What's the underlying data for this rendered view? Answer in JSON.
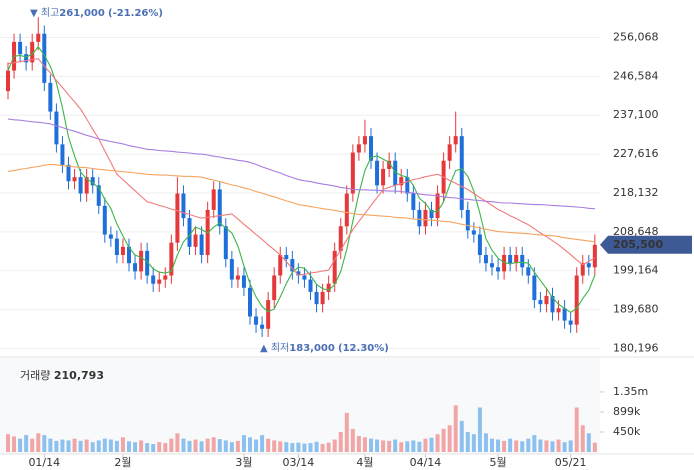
{
  "chart_data": {
    "type": "candlestick",
    "categories": [
      null,
      null,
      null,
      null,
      null,
      null,
      "01/14",
      null,
      null,
      null,
      null,
      null,
      null,
      null,
      null,
      null,
      null,
      null,
      null,
      "2월",
      null,
      null,
      null,
      null,
      null,
      null,
      null,
      null,
      null,
      null,
      null,
      null,
      null,
      null,
      null,
      null,
      null,
      null,
      null,
      "3월",
      null,
      null,
      null,
      null,
      null,
      null,
      null,
      null,
      "03/14",
      null,
      null,
      null,
      null,
      null,
      null,
      null,
      null,
      null,
      null,
      "4월",
      null,
      null,
      null,
      null,
      null,
      null,
      null,
      null,
      null,
      "04/14",
      null,
      null,
      null,
      null,
      null,
      null,
      null,
      null,
      null,
      null,
      null,
      "5월",
      null,
      null,
      null,
      null,
      null,
      null,
      null,
      null,
      null,
      null,
      null,
      "05/21",
      null,
      null,
      null,
      null
    ],
    "open": [
      243000,
      248000,
      255000,
      252000,
      250000,
      255000,
      257000,
      245000,
      238000,
      230000,
      225000,
      221000,
      222000,
      218000,
      222000,
      220000,
      215000,
      208000,
      207000,
      203000,
      205000,
      201000,
      199000,
      204000,
      198000,
      196000,
      197000,
      198000,
      206000,
      218000,
      212000,
      205000,
      208000,
      203000,
      214000,
      219000,
      210000,
      202000,
      197000,
      198000,
      195000,
      188000,
      186000,
      185000,
      192000,
      198000,
      203000,
      202000,
      199000,
      198000,
      197000,
      194000,
      191000,
      194000,
      196000,
      204000,
      210000,
      218000,
      228000,
      230000,
      232000,
      226000,
      220000,
      224000,
      226000,
      220000,
      222000,
      218000,
      214000,
      210000,
      214000,
      212000,
      218000,
      226000,
      230000,
      232000,
      214000,
      209000,
      208000,
      203000,
      201000,
      200000,
      199000,
      203000,
      201000,
      203000,
      200000,
      198000,
      192000,
      191000,
      193000,
      189000,
      190000,
      187000,
      186000,
      198000,
      201000,
      200000
    ],
    "high": [
      250000,
      257000,
      257000,
      254000,
      257000,
      261000,
      259000,
      247000,
      240000,
      232000,
      227000,
      224000,
      224000,
      224000,
      224000,
      222000,
      217000,
      210000,
      209000,
      207000,
      207000,
      203000,
      206000,
      206000,
      200000,
      199000,
      200000,
      208000,
      222000,
      220000,
      214000,
      210000,
      210000,
      216000,
      221000,
      221000,
      212000,
      204000,
      200000,
      200000,
      197000,
      190000,
      188000,
      194000,
      200000,
      205000,
      205000,
      204000,
      201000,
      200000,
      199000,
      196000,
      196000,
      198000,
      206000,
      212000,
      220000,
      230000,
      232000,
      236000,
      234000,
      228000,
      226000,
      228000,
      228000,
      224000,
      224000,
      220000,
      216000,
      216000,
      216000,
      220000,
      228000,
      232000,
      238000,
      234000,
      216000,
      211000,
      210000,
      205000,
      203000,
      202000,
      205000,
      205000,
      205000,
      205000,
      202000,
      200000,
      194000,
      195000,
      195000,
      192000,
      192000,
      189000,
      200000,
      203000,
      203000,
      208000
    ],
    "low": [
      241000,
      246000,
      250000,
      248000,
      248000,
      253000,
      243000,
      236000,
      228000,
      223000,
      219000,
      219000,
      216000,
      216000,
      218000,
      213000,
      206000,
      205000,
      201000,
      201000,
      199000,
      197000,
      197000,
      196000,
      194000,
      194000,
      195000,
      196000,
      204000,
      210000,
      203000,
      203000,
      201000,
      201000,
      212000,
      208000,
      200000,
      195000,
      195000,
      193000,
      186000,
      184000,
      183000,
      183000,
      190000,
      196000,
      200000,
      197000,
      196000,
      195000,
      192000,
      189000,
      189000,
      192000,
      194000,
      202000,
      208000,
      216000,
      226000,
      228000,
      224000,
      218000,
      218000,
      222000,
      218000,
      218000,
      216000,
      212000,
      208000,
      208000,
      210000,
      210000,
      216000,
      224000,
      228000,
      212000,
      207000,
      206000,
      201000,
      199000,
      198000,
      197000,
      197000,
      199000,
      199000,
      198000,
      196000,
      190000,
      189000,
      189000,
      187000,
      187000,
      185000,
      184000,
      184000,
      196000,
      198000,
      198000
    ],
    "close": [
      248000,
      255000,
      252000,
      250000,
      255000,
      257000,
      245000,
      238000,
      230000,
      225000,
      221000,
      222000,
      218000,
      222000,
      220000,
      215000,
      208000,
      207000,
      203000,
      205000,
      201000,
      199000,
      204000,
      198000,
      196000,
      197000,
      198000,
      206000,
      218000,
      212000,
      205000,
      208000,
      203000,
      214000,
      219000,
      210000,
      202000,
      197000,
      198000,
      195000,
      188000,
      186000,
      185000,
      192000,
      198000,
      203000,
      202000,
      199000,
      198000,
      197000,
      194000,
      191000,
      194000,
      196000,
      204000,
      210000,
      218000,
      228000,
      230000,
      232000,
      226000,
      220000,
      224000,
      226000,
      220000,
      222000,
      218000,
      214000,
      210000,
      214000,
      212000,
      218000,
      226000,
      230000,
      232000,
      214000,
      209000,
      208000,
      203000,
      201000,
      200000,
      199000,
      203000,
      201000,
      203000,
      200000,
      198000,
      192000,
      191000,
      193000,
      189000,
      190000,
      187000,
      186000,
      198000,
      201000,
      200000,
      205500
    ],
    "up_color": "#e5383b",
    "down_color": "#1e6fd9",
    "ylim": [
      178600,
      264000
    ],
    "yticks": [
      {
        "value": 256068,
        "label": "256,068"
      },
      {
        "value": 246584,
        "label": "246,584"
      },
      {
        "value": 237100,
        "label": "237,100"
      },
      {
        "value": 227616,
        "label": "227,616"
      },
      {
        "value": 218132,
        "label": "218,132"
      },
      {
        "value": 208648,
        "label": "208,648"
      },
      {
        "value": 199164,
        "label": "199,164"
      },
      {
        "value": 189680,
        "label": "189,680"
      },
      {
        "value": 180196,
        "label": "180,196"
      }
    ],
    "grid": true,
    "moving_averages": [
      {
        "color": "#3cb54a",
        "values": [
          248000,
          251500,
          251700,
          251300,
          252000,
          253800,
          251800,
          249000,
          245000,
          239000,
          231800,
          227200,
          223200,
          221600,
          220600,
          219400,
          216600,
          214400,
          210600,
          207600,
          204800,
          203000,
          202400,
          201400,
          199600,
          198800,
          198600,
          199000,
          203000,
          206200,
          207800,
          209800,
          209200,
          208400,
          209800,
          210800,
          209600,
          208400,
          205200,
          200400,
          196000,
          192800,
          190400,
          189200,
          189800,
          192800,
          196000,
          198800,
          200000,
          199800,
          198000,
          195800,
          194800,
          194400,
          195800,
          199000,
          204400,
          211200,
          218000,
          223600,
          226800,
          227200,
          226400,
          225600,
          223200,
          222400,
          222000,
          220000,
          216800,
          215600,
          213600,
          213600,
          216000,
          220000,
          223600,
          224000,
          222200,
          218600,
          213200,
          207000,
          204200,
          202200,
          201200,
          200800,
          201200,
          201200,
          201000,
          198800,
          196800,
          194800,
          192600,
          191000,
          190000,
          189000,
          190000,
          192400,
          194400,
          198100
        ]
      },
      {
        "color": "#f07b7b",
        "values": [
          249700,
          249900,
          250200,
          250400,
          250700,
          250900,
          249100,
          247400,
          245600,
          243900,
          242100,
          240400,
          238600,
          236200,
          233700,
          231300,
          228400,
          225600,
          222700,
          221400,
          220000,
          218700,
          217300,
          216000,
          215600,
          215100,
          214700,
          214200,
          213800,
          213300,
          212900,
          212400,
          212000,
          212200,
          212400,
          212600,
          212800,
          213000,
          211800,
          210500,
          209300,
          208000,
          206800,
          205500,
          204300,
          203000,
          201400,
          199700,
          198100,
          198300,
          198600,
          198800,
          199100,
          199300,
          201800,
          204300,
          206700,
          209200,
          211200,
          213100,
          215100,
          217000,
          219000,
          219500,
          220000,
          220400,
          220900,
          221400,
          221700,
          222100,
          222400,
          222700,
          222000,
          221200,
          220500,
          219700,
          219000,
          218000,
          217000,
          216100,
          215100,
          214100,
          213400,
          212600,
          211900,
          211100,
          210400,
          209400,
          208400,
          207500,
          206500,
          205500,
          204300,
          203100,
          201800,
          200600,
          201500,
          202300
        ]
      },
      {
        "color": "#f5a45f",
        "values": [
          223400,
          223600,
          223900,
          224100,
          224400,
          224600,
          224900,
          225100,
          225000,
          224800,
          224700,
          224500,
          224400,
          224300,
          224100,
          223900,
          223800,
          223600,
          223500,
          223300,
          223200,
          223000,
          222900,
          222700,
          222600,
          222500,
          222500,
          222400,
          222300,
          222200,
          222200,
          222100,
          222000,
          221600,
          221300,
          220900,
          220500,
          220100,
          219800,
          219400,
          219000,
          218500,
          218100,
          217600,
          217200,
          216700,
          216200,
          215800,
          215300,
          215100,
          214800,
          214600,
          214300,
          214100,
          213900,
          213600,
          213400,
          213100,
          212900,
          212800,
          212700,
          212600,
          212500,
          212400,
          212200,
          212100,
          212000,
          211800,
          211700,
          211600,
          211500,
          211400,
          211200,
          211100,
          210800,
          210500,
          210200,
          209900,
          209600,
          209300,
          209000,
          208700,
          208600,
          208500,
          208400,
          208300,
          208200,
          208000,
          207900,
          207800,
          207700,
          207500,
          207200,
          207000,
          206800,
          206600,
          206400,
          206200
        ]
      },
      {
        "color": "#a97de0",
        "values": [
          236200,
          236000,
          235900,
          235700,
          235500,
          235400,
          235200,
          235000,
          234500,
          234100,
          233600,
          233200,
          232700,
          232200,
          231800,
          231300,
          231000,
          230700,
          230400,
          230100,
          229700,
          229400,
          229100,
          228800,
          228700,
          228500,
          228400,
          228300,
          228100,
          228000,
          227900,
          227700,
          227600,
          227400,
          227100,
          226900,
          226600,
          226400,
          226100,
          225900,
          225600,
          225100,
          224500,
          224000,
          223500,
          223000,
          222400,
          221900,
          221400,
          221100,
          220900,
          220600,
          220300,
          220100,
          219800,
          219500,
          219300,
          219000,
          218900,
          218900,
          218800,
          218800,
          218700,
          218600,
          218600,
          218500,
          218300,
          218100,
          217900,
          217700,
          217600,
          217400,
          217200,
          217000,
          216900,
          216700,
          216600,
          216400,
          216300,
          216100,
          216000,
          215800,
          215700,
          215700,
          215600,
          215500,
          215400,
          215300,
          215300,
          215200,
          215100,
          215000,
          214900,
          214800,
          214700,
          214600,
          214400,
          214300
        ]
      }
    ],
    "current_price_label": "205,500",
    "current_price_color": "#3d5a96",
    "max_annotation": {
      "marker": "▼",
      "label": "최고",
      "value": "261,000",
      "change": "(-21.26%)"
    },
    "min_annotation": {
      "marker": "▲",
      "label": "최저",
      "value": "183,000",
      "change": "(12.30%)"
    },
    "volume": {
      "title": "거래량",
      "current_label": "210,793",
      "up_color": "#f2a5a5",
      "down_color": "#8cc0ee",
      "values": [
        400000,
        350000,
        300000,
        380000,
        300000,
        420000,
        380000,
        300000,
        250000,
        280000,
        260000,
        300000,
        250000,
        280000,
        220000,
        260000,
        300000,
        280000,
        250000,
        330000,
        240000,
        220000,
        260000,
        200000,
        180000,
        220000,
        200000,
        300000,
        420000,
        300000,
        250000,
        280000,
        240000,
        300000,
        330000,
        290000,
        260000,
        220000,
        250000,
        380000,
        330000,
        280000,
        380000,
        300000,
        260000,
        240000,
        220000,
        200000,
        210000,
        190000,
        200000,
        230000,
        180000,
        210000,
        280000,
        450000,
        880000,
        520000,
        360000,
        330000,
        300000,
        280000,
        260000,
        250000,
        280000,
        220000,
        240000,
        260000,
        230000,
        300000,
        320000,
        400000,
        520000,
        600000,
        1050000,
        700000,
        450000,
        400000,
        1000000,
        420000,
        300000,
        280000,
        250000,
        300000,
        260000,
        240000,
        300000,
        380000,
        280000,
        260000,
        240000,
        280000,
        220000,
        260000,
        1000000,
        600000,
        420000,
        210793
      ],
      "ylim": [
        0,
        2000000
      ],
      "yticks": [
        {
          "value": 1350000,
          "label": "1.35m"
        },
        {
          "value": 899000,
          "label": "899k"
        },
        {
          "value": 450000,
          "label": "450k"
        }
      ]
    }
  }
}
